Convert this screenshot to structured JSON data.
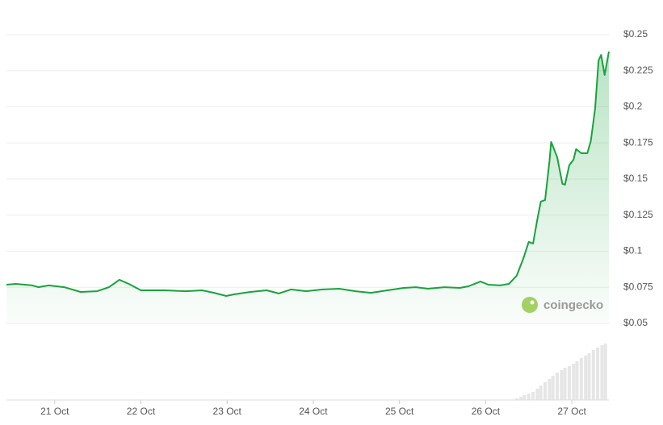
{
  "chart_data": {
    "type": "area",
    "x": [
      20.44,
      20.55,
      20.74,
      20.81,
      20.93,
      21.11,
      21.3,
      21.49,
      21.63,
      21.75,
      21.86,
      22.0,
      22.14,
      22.28,
      22.52,
      22.71,
      22.85,
      22.99,
      23.08,
      23.27,
      23.46,
      23.6,
      23.74,
      23.92,
      24.11,
      24.3,
      24.49,
      24.67,
      24.86,
      25.05,
      25.19,
      25.33,
      25.52,
      25.7,
      25.8,
      25.94,
      26.03,
      26.17,
      26.27,
      26.36,
      26.44,
      26.5,
      26.55,
      26.6,
      26.64,
      26.69,
      26.74,
      26.76,
      26.83,
      26.89,
      26.92,
      26.97,
      27.02,
      27.05,
      27.11,
      27.18,
      27.22,
      27.27,
      27.31,
      27.34,
      27.38,
      27.43
    ],
    "values": [
      0.0768,
      0.0774,
      0.0763,
      0.0751,
      0.0763,
      0.0751,
      0.0718,
      0.0723,
      0.0751,
      0.0802,
      0.0774,
      0.0729,
      0.0729,
      0.0729,
      0.0723,
      0.0729,
      0.0712,
      0.069,
      0.0701,
      0.0718,
      0.0729,
      0.0707,
      0.0735,
      0.0723,
      0.0735,
      0.074,
      0.0723,
      0.0712,
      0.0729,
      0.0746,
      0.0751,
      0.074,
      0.0751,
      0.0746,
      0.0757,
      0.079,
      0.0768,
      0.0763,
      0.0774,
      0.083,
      0.0953,
      0.1064,
      0.1053,
      0.1221,
      0.1344,
      0.1355,
      0.1623,
      0.1757,
      0.1651,
      0.1467,
      0.1461,
      0.1595,
      0.1634,
      0.1707,
      0.1679,
      0.1679,
      0.1763,
      0.1986,
      0.2321,
      0.236,
      0.2221,
      0.2383
    ],
    "color": "#18a33b",
    "xlim": [
      20.44,
      27.43
    ],
    "xticks": [
      {
        "value": 21,
        "label": "21 Oct"
      },
      {
        "value": 22,
        "label": "22 Oct"
      },
      {
        "value": 23,
        "label": "23 Oct"
      },
      {
        "value": 24,
        "label": "24 Oct"
      },
      {
        "value": 25,
        "label": "25 Oct"
      },
      {
        "value": 26,
        "label": "26 Oct"
      },
      {
        "value": 27,
        "label": "27 Oct"
      }
    ],
    "ylim": [
      0.05,
      0.25
    ],
    "yticks": [
      {
        "value": 0.05,
        "label": "$0.05"
      },
      {
        "value": 0.075,
        "label": "$0.075"
      },
      {
        "value": 0.1,
        "label": "$0.1"
      },
      {
        "value": 0.125,
        "label": "$0.125"
      },
      {
        "value": 0.15,
        "label": "$0.15"
      },
      {
        "value": 0.175,
        "label": "$0.175"
      },
      {
        "value": 0.2,
        "label": "$0.2"
      },
      {
        "value": 0.225,
        "label": "$0.225"
      },
      {
        "value": 0.25,
        "label": "$0.25"
      }
    ],
    "grid": true,
    "watermark": "coingecko",
    "volume": {
      "x": [
        26.36,
        26.41,
        26.45,
        26.5,
        26.55,
        26.6,
        26.64,
        26.69,
        26.74,
        26.78,
        26.83,
        26.88,
        26.92,
        26.97,
        27.02,
        27.06,
        27.11,
        27.16,
        27.2,
        27.25,
        27.3,
        27.35,
        27.39
      ],
      "values": [
        2,
        4,
        6,
        8,
        10,
        14,
        18,
        22,
        26,
        30,
        34,
        37,
        40,
        42,
        45,
        48,
        52,
        55,
        58,
        62,
        65,
        68,
        70
      ],
      "ylim": [
        0,
        72
      ],
      "color": "#e6e6e6"
    }
  }
}
